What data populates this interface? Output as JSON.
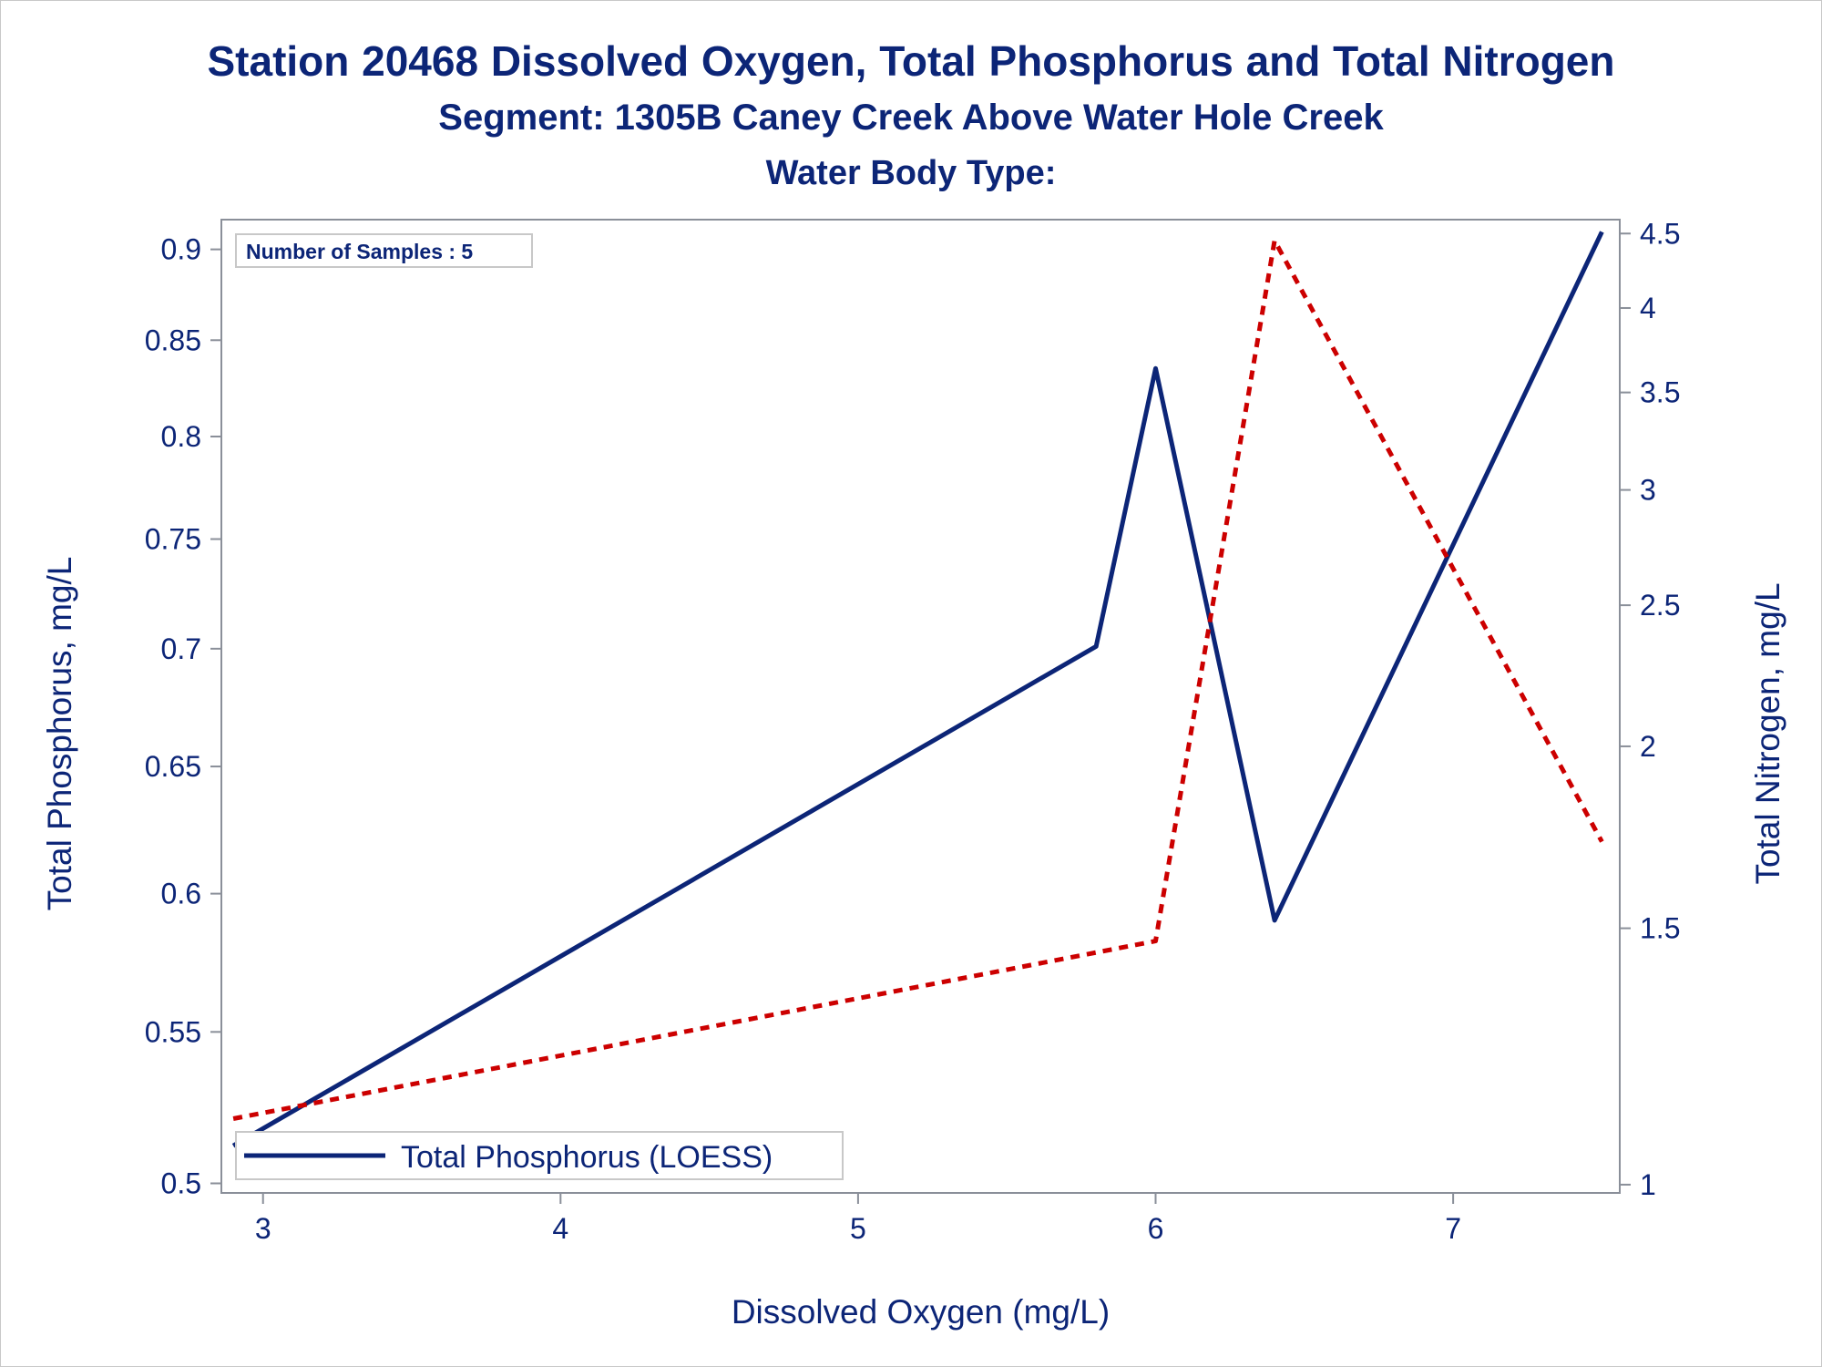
{
  "titles": {
    "line1": "Station 20468  Dissolved Oxygen, Total Phosphorus and Total Nitrogen",
    "line2": "Segment: 1305B  Caney Creek Above Water Hole Creek",
    "line3": "Water Body Type:"
  },
  "inset": {
    "label": "Number of Samples : 5"
  },
  "legend": {
    "label": "Total Phosphorus (LOESS)"
  },
  "colors": {
    "text": "#0c2577",
    "phosphorus": "#0c2577",
    "nitrogen": "#cc0000",
    "axis": "#8a8f99"
  },
  "chart_data": {
    "type": "line",
    "xlabel": "Dissolved Oxygen (mg/L)",
    "ylabel": "Total Phosphorus, mg/L",
    "y2label": "Total Nitrogen, mg/L",
    "xlim": [
      2.86,
      7.56
    ],
    "ylim": [
      0.497,
      0.917
    ],
    "y_scale": "log",
    "y2lim": [
      0.987,
      4.6
    ],
    "y2_scale": "log",
    "x_ticks": [
      3,
      4,
      5,
      6,
      7
    ],
    "y_ticks": [
      0.5,
      0.55,
      0.6,
      0.65,
      0.7,
      0.75,
      0.8,
      0.85,
      0.9
    ],
    "y2_ticks": [
      1,
      1.5,
      2,
      2.5,
      3,
      3.5,
      4,
      4.5
    ],
    "grid": false,
    "legend_position": "bottom-left",
    "series": [
      {
        "name": "Total Phosphorus (LOESS)",
        "axis": "left",
        "style": "solid",
        "x": [
          2.9,
          5.8,
          6.0,
          6.4,
          7.5
        ],
        "y": [
          0.512,
          0.701,
          0.835,
          0.59,
          0.91
        ]
      },
      {
        "axis": "right",
        "style": "dashed",
        "x": [
          2.9,
          6.0,
          6.4,
          7.5
        ],
        "y": [
          1.11,
          1.47,
          4.45,
          1.72
        ]
      }
    ]
  }
}
